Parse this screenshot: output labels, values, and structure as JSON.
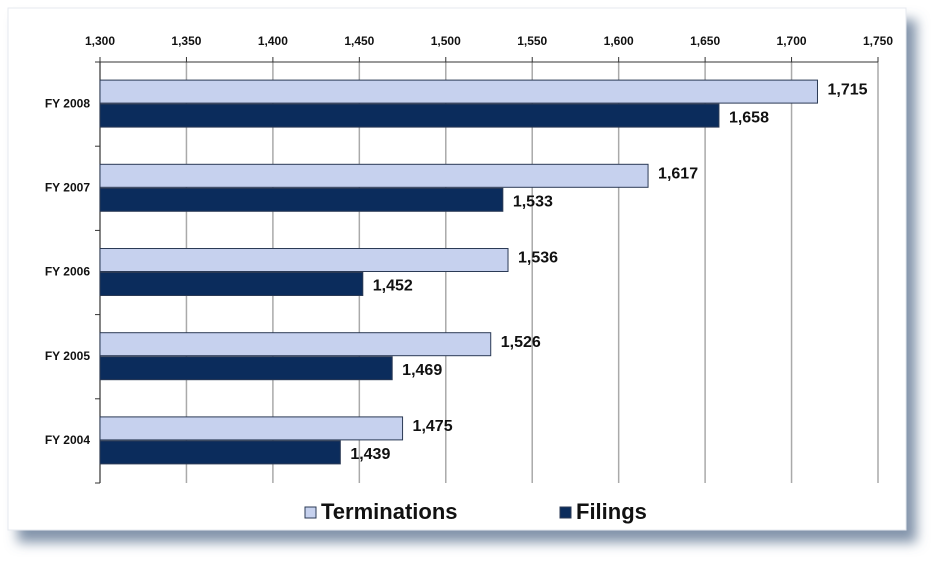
{
  "chart_data": {
    "type": "hbar",
    "categories": [
      "FY 2008",
      "FY 2007",
      "FY 2006",
      "FY 2005",
      "FY 2004"
    ],
    "series": [
      {
        "name": "Terminations",
        "color": "#c6d1ee",
        "values": [
          1715,
          1617,
          1536,
          1526,
          1475
        ],
        "value_labels": [
          "1,715",
          "1,617",
          "1,536",
          "1,526",
          "1,475"
        ]
      },
      {
        "name": "Filings",
        "color": "#0b2c5c",
        "values": [
          1658,
          1533,
          1452,
          1469,
          1439
        ],
        "value_labels": [
          "1,658",
          "1,533",
          "1,452",
          "1,469",
          "1,439"
        ]
      }
    ],
    "xlim": [
      1300,
      1750
    ],
    "xticks": [
      {
        "value": 1300,
        "label": "1,300"
      },
      {
        "value": 1350,
        "label": "1,350"
      },
      {
        "value": 1400,
        "label": "1,400"
      },
      {
        "value": 1450,
        "label": "1,450"
      },
      {
        "value": 1500,
        "label": "1,500"
      },
      {
        "value": 1550,
        "label": "1,550"
      },
      {
        "value": 1600,
        "label": "1,600"
      },
      {
        "value": 1650,
        "label": "1,650"
      },
      {
        "value": 1700,
        "label": "1,700"
      },
      {
        "value": 1750,
        "label": "1,750"
      }
    ],
    "grid": true
  }
}
